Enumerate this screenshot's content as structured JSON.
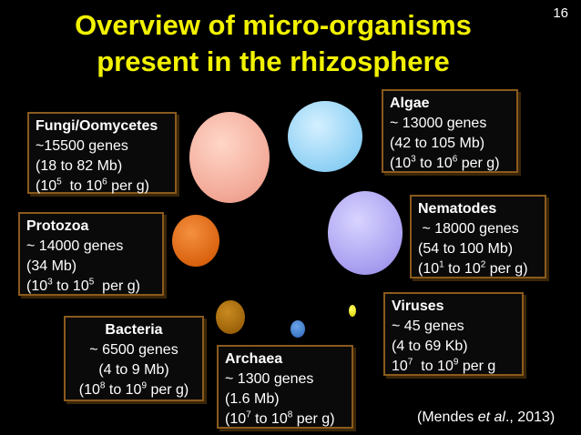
{
  "slide": {
    "title_line1": "Overview of micro-organisms",
    "title_line2": "present in the rhizosphere",
    "page_number": "16",
    "citation_prefix": "(Mendes ",
    "citation_italic": "et al",
    "citation_suffix": "., 2013)"
  },
  "organisms": {
    "fungi": {
      "name": "Fungi/Oomycetes",
      "genes": "~15500 genes",
      "size": "(18 to 82 Mb)",
      "pop_a": "(10",
      "sup_a": "5",
      "pop_b": "  to 10",
      "sup_b": "6",
      "pop_c": " per g)"
    },
    "protozoa": {
      "name": "Protozoa",
      "genes": "~ 14000 genes",
      "size": "(34 Mb)",
      "pop_a": "(10",
      "sup_a": "3",
      "pop_b": " to 10",
      "sup_b": "5",
      "pop_c": "  per g)"
    },
    "bacteria": {
      "name": "Bacteria",
      "genes": "~ 6500 genes",
      "size": "(4 to 9 Mb)",
      "pop_a": "(10",
      "sup_a": "8",
      "pop_b": " to 10",
      "sup_b": "9",
      "pop_c": " per g)"
    },
    "archaea": {
      "name": "Archaea",
      "genes": "~ 1300 genes",
      "size": "(1.6 Mb)",
      "pop_a": "(10",
      "sup_a": "7",
      "pop_b": " to 10",
      "sup_b": "8",
      "pop_c": " per g)"
    },
    "algae": {
      "name": "Algae",
      "genes": "~ 13000 genes",
      "size": "(42 to 105 Mb)",
      "pop_a": "(10",
      "sup_a": "3",
      "pop_b": " to 10",
      "sup_b": "6",
      "pop_c": " per g)"
    },
    "nematodes": {
      "name": "Nematodes",
      "genes": " ~ 18000 genes",
      "size": "(54 to 100 Mb)",
      "pop_a": "(10",
      "sup_a": "1",
      "pop_b": " to 10",
      "sup_b": "2",
      "pop_c": " per g)"
    },
    "viruses": {
      "name": "Viruses",
      "genes": "~ 45 genes",
      "size": "(4 to 69 Kb)",
      "pop_a": "10",
      "sup_a": "7",
      "pop_b": "  to 10",
      "sup_b": "9",
      "pop_c": " per g"
    }
  },
  "colors": {
    "title": "#f2f200",
    "fungi_circle": "#f5b8a8",
    "algae_circle": "#a8dcf8",
    "nematodes_circle": "#b8b0f4",
    "protozoa_circle": "#e06a1a",
    "bacteria_circle": "#a86a0a",
    "archaea_circle": "#3a78c8",
    "viruses_circle": "#e8e000",
    "box_border": "#8a5a1c"
  }
}
